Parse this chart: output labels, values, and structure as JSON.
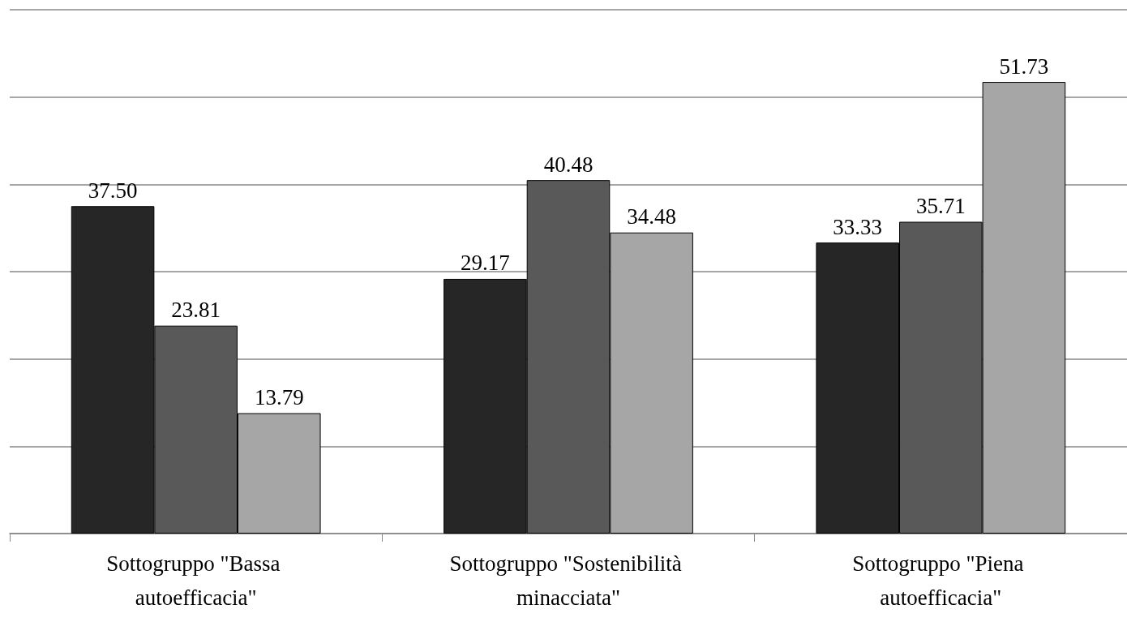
{
  "chart_data": {
    "type": "bar",
    "categories": [
      "Sottogruppo \"Bassa autoefficacia\"",
      "Sottogruppo \"Sostenibilità minacciata\"",
      "Sottogruppo \"Piena autoefficacia\""
    ],
    "series": [
      {
        "color": "#262626",
        "values": [
          37.5,
          29.17,
          33.33
        ],
        "value_labels": [
          "37.50",
          "29.17",
          "33.33"
        ]
      },
      {
        "color": "#595959",
        "values": [
          23.81,
          40.48,
          35.71
        ],
        "value_labels": [
          "23.81",
          "40.48",
          "35.71"
        ]
      },
      {
        "color": "#a6a6a6",
        "values": [
          13.79,
          34.48,
          51.73
        ],
        "value_labels": [
          "13.79",
          "34.48",
          "51.73"
        ]
      }
    ],
    "ylim": [
      0,
      60
    ],
    "yticks": [
      0,
      {
        "value": 10,
        "label": null
      },
      {
        "value": 20,
        "label": null
      },
      {
        "value": 30,
        "label": null
      },
      {
        "value": 40,
        "label": null
      },
      {
        "value": 50,
        "label": null
      },
      {
        "value": 60,
        "label": null
      }
    ],
    "grid": "y",
    "tick_labels": "x"
  }
}
